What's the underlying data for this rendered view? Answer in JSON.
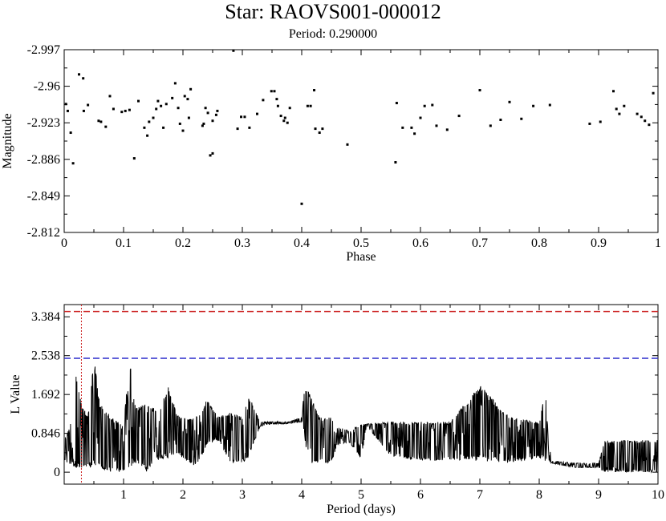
{
  "title": "Star: RAOVS001-000012",
  "subtitle": "Period: 0.290000",
  "chart_data": [
    {
      "type": "scatter",
      "xlabel": "Phase",
      "ylabel": "Magnitude",
      "xlim": [
        0,
        1
      ],
      "ylim": [
        -2.997,
        -2.812
      ],
      "y_inverted": true,
      "xticks": [
        0,
        0.1,
        0.2,
        0.3,
        0.4,
        0.5,
        0.6,
        0.7,
        0.8,
        0.9,
        1
      ],
      "xtick_labels": [
        "0",
        "0.1",
        "0.2",
        "0.3",
        "0.4",
        "0.5",
        "0.6",
        "0.7",
        "0.8",
        "0.9",
        "1"
      ],
      "yticks": [
        -2.997,
        -2.96,
        -2.923,
        -2.886,
        -2.849,
        -2.812
      ],
      "ytick_labels": [
        "-2.997",
        "-2.96",
        "-2.923",
        "-2.886",
        "-2.849",
        "-2.812"
      ],
      "points": [
        [
          0.003,
          -2.942
        ],
        [
          0.006,
          -2.935
        ],
        [
          0.011,
          -2.913
        ],
        [
          0.015,
          -2.882
        ],
        [
          0.025,
          -2.972
        ],
        [
          0.032,
          -2.968
        ],
        [
          0.033,
          -2.935
        ],
        [
          0.04,
          -2.941
        ],
        [
          0.058,
          -2.925
        ],
        [
          0.062,
          -2.924
        ],
        [
          0.07,
          -2.919
        ],
        [
          0.077,
          -2.95
        ],
        [
          0.083,
          -2.937
        ],
        [
          0.097,
          -2.934
        ],
        [
          0.103,
          -2.935
        ],
        [
          0.11,
          -2.936
        ],
        [
          0.118,
          -2.887
        ],
        [
          0.125,
          -2.945
        ],
        [
          0.135,
          -2.918
        ],
        [
          0.14,
          -2.91
        ],
        [
          0.143,
          -2.924
        ],
        [
          0.15,
          -2.928
        ],
        [
          0.155,
          -2.937
        ],
        [
          0.158,
          -2.945
        ],
        [
          0.163,
          -2.94
        ],
        [
          0.167,
          -2.918
        ],
        [
          0.172,
          -2.942
        ],
        [
          0.182,
          -2.948
        ],
        [
          0.187,
          -2.963
        ],
        [
          0.192,
          -2.938
        ],
        [
          0.195,
          -2.922
        ],
        [
          0.2,
          -2.915
        ],
        [
          0.203,
          -2.95
        ],
        [
          0.208,
          -2.947
        ],
        [
          0.21,
          -2.928
        ],
        [
          0.213,
          -2.957
        ],
        [
          0.233,
          -2.92
        ],
        [
          0.235,
          -2.922
        ],
        [
          0.238,
          -2.938
        ],
        [
          0.242,
          -2.933
        ],
        [
          0.246,
          -2.89
        ],
        [
          0.25,
          -2.892
        ],
        [
          0.25,
          -2.925
        ],
        [
          0.256,
          -2.931
        ],
        [
          0.258,
          -2.935
        ],
        [
          0.285,
          -2.996
        ],
        [
          0.292,
          -2.917
        ],
        [
          0.298,
          -2.929
        ],
        [
          0.304,
          -2.929
        ],
        [
          0.312,
          -2.918
        ],
        [
          0.325,
          -2.932
        ],
        [
          0.335,
          -2.946
        ],
        [
          0.349,
          -2.955
        ],
        [
          0.354,
          -2.955
        ],
        [
          0.358,
          -2.947
        ],
        [
          0.36,
          -2.94
        ],
        [
          0.365,
          -2.93
        ],
        [
          0.37,
          -2.925
        ],
        [
          0.372,
          -2.928
        ],
        [
          0.376,
          -2.923
        ],
        [
          0.38,
          -2.938
        ],
        [
          0.4,
          -2.841
        ],
        [
          0.41,
          -2.94
        ],
        [
          0.415,
          -2.94
        ],
        [
          0.421,
          -2.956
        ],
        [
          0.423,
          -2.917
        ],
        [
          0.43,
          -2.913
        ],
        [
          0.435,
          -2.917
        ],
        [
          0.477,
          -2.901
        ],
        [
          0.558,
          -2.883
        ],
        [
          0.56,
          -2.943
        ],
        [
          0.57,
          -2.918
        ],
        [
          0.585,
          -2.918
        ],
        [
          0.59,
          -2.912
        ],
        [
          0.6,
          -2.928
        ],
        [
          0.607,
          -2.94
        ],
        [
          0.62,
          -2.941
        ],
        [
          0.627,
          -2.92
        ],
        [
          0.645,
          -2.916
        ],
        [
          0.665,
          -2.93
        ],
        [
          0.7,
          -2.956
        ],
        [
          0.718,
          -2.92
        ],
        [
          0.735,
          -2.926
        ],
        [
          0.75,
          -2.944
        ],
        [
          0.77,
          -2.927
        ],
        [
          0.79,
          -2.94
        ],
        [
          0.818,
          -2.941
        ],
        [
          0.885,
          -2.922
        ],
        [
          0.903,
          -2.924
        ],
        [
          0.925,
          -2.955
        ],
        [
          0.93,
          -2.937
        ],
        [
          0.935,
          -2.932
        ],
        [
          0.943,
          -2.94
        ],
        [
          0.965,
          -2.932
        ],
        [
          0.972,
          -2.929
        ],
        [
          0.978,
          -2.925
        ],
        [
          0.985,
          -2.921
        ],
        [
          0.992,
          -2.953
        ]
      ]
    },
    {
      "type": "line",
      "xlabel": "Period (days)",
      "ylabel": "L Value",
      "xlim": [
        0,
        10
      ],
      "ylim": [
        -0.26,
        3.65
      ],
      "xticks": [
        1,
        2,
        3,
        4,
        5,
        6,
        7,
        8,
        9,
        10
      ],
      "xtick_labels": [
        "1",
        "2",
        "3",
        "4",
        "5",
        "6",
        "7",
        "8",
        "9",
        "10"
      ],
      "yticks": [
        0,
        0.846,
        1.692,
        2.538,
        3.384
      ],
      "ytick_labels": [
        "0",
        "0.846",
        "1.692",
        "2.538",
        "3.384"
      ],
      "threshold_lines": [
        {
          "y": 3.5,
          "color": "#cc1f1f"
        },
        {
          "y": 2.48,
          "color": "#2b2bcc"
        }
      ],
      "marker_line": {
        "x": 0.29,
        "color": "#cc1f1f"
      },
      "envelope": [
        [
          0.0,
          0.25,
          0.75
        ],
        [
          0.1,
          0.15,
          1.0
        ],
        [
          0.2,
          0.1,
          2.1
        ],
        [
          0.3,
          0.05,
          1.5
        ],
        [
          0.4,
          0.1,
          1.2
        ],
        [
          0.5,
          0.1,
          2.5
        ],
        [
          0.6,
          0.05,
          1.5
        ],
        [
          0.8,
          0.0,
          1.2
        ],
        [
          1.0,
          0.0,
          1.0
        ],
        [
          1.1,
          0.1,
          2.5
        ],
        [
          1.2,
          0.2,
          1.4
        ],
        [
          1.4,
          0.0,
          1.5
        ],
        [
          1.6,
          0.3,
          1.3
        ],
        [
          1.75,
          0.3,
          1.9
        ],
        [
          1.9,
          0.4,
          1.25
        ],
        [
          2.0,
          0.3,
          1.2
        ],
        [
          2.2,
          0.1,
          1.2
        ],
        [
          2.3,
          0.3,
          1.25
        ],
        [
          2.4,
          0.6,
          1.6
        ],
        [
          2.6,
          0.7,
          1.2
        ],
        [
          2.8,
          0.2,
          1.3
        ],
        [
          3.0,
          0.2,
          1.2
        ],
        [
          3.1,
          0.3,
          1.7
        ],
        [
          3.3,
          1.0,
          1.1
        ],
        [
          3.5,
          1.05,
          1.1
        ],
        [
          3.8,
          1.05,
          1.1
        ],
        [
          4.0,
          1.1,
          1.2
        ],
        [
          4.05,
          0.8,
          1.9
        ],
        [
          4.1,
          0.2,
          1.8
        ],
        [
          4.3,
          0.2,
          1.2
        ],
        [
          4.5,
          0.2,
          1.2
        ],
        [
          4.6,
          0.6,
          1.0
        ],
        [
          4.8,
          0.65,
          0.9
        ],
        [
          5.0,
          0.3,
          1.05
        ],
        [
          5.1,
          1.0,
          1.05
        ],
        [
          5.5,
          0.35,
          1.1
        ],
        [
          6.0,
          0.25,
          1.1
        ],
        [
          6.5,
          0.25,
          1.1
        ],
        [
          7.0,
          0.25,
          1.9
        ],
        [
          7.5,
          0.2,
          1.2
        ],
        [
          8.0,
          0.3,
          1.1
        ],
        [
          8.1,
          0.25,
          1.8
        ],
        [
          8.2,
          0.2,
          0.25
        ],
        [
          8.6,
          0.1,
          0.2
        ],
        [
          9.0,
          0.1,
          0.2
        ],
        [
          9.1,
          0.0,
          0.7
        ],
        [
          10.0,
          0.0,
          0.7
        ]
      ]
    }
  ]
}
